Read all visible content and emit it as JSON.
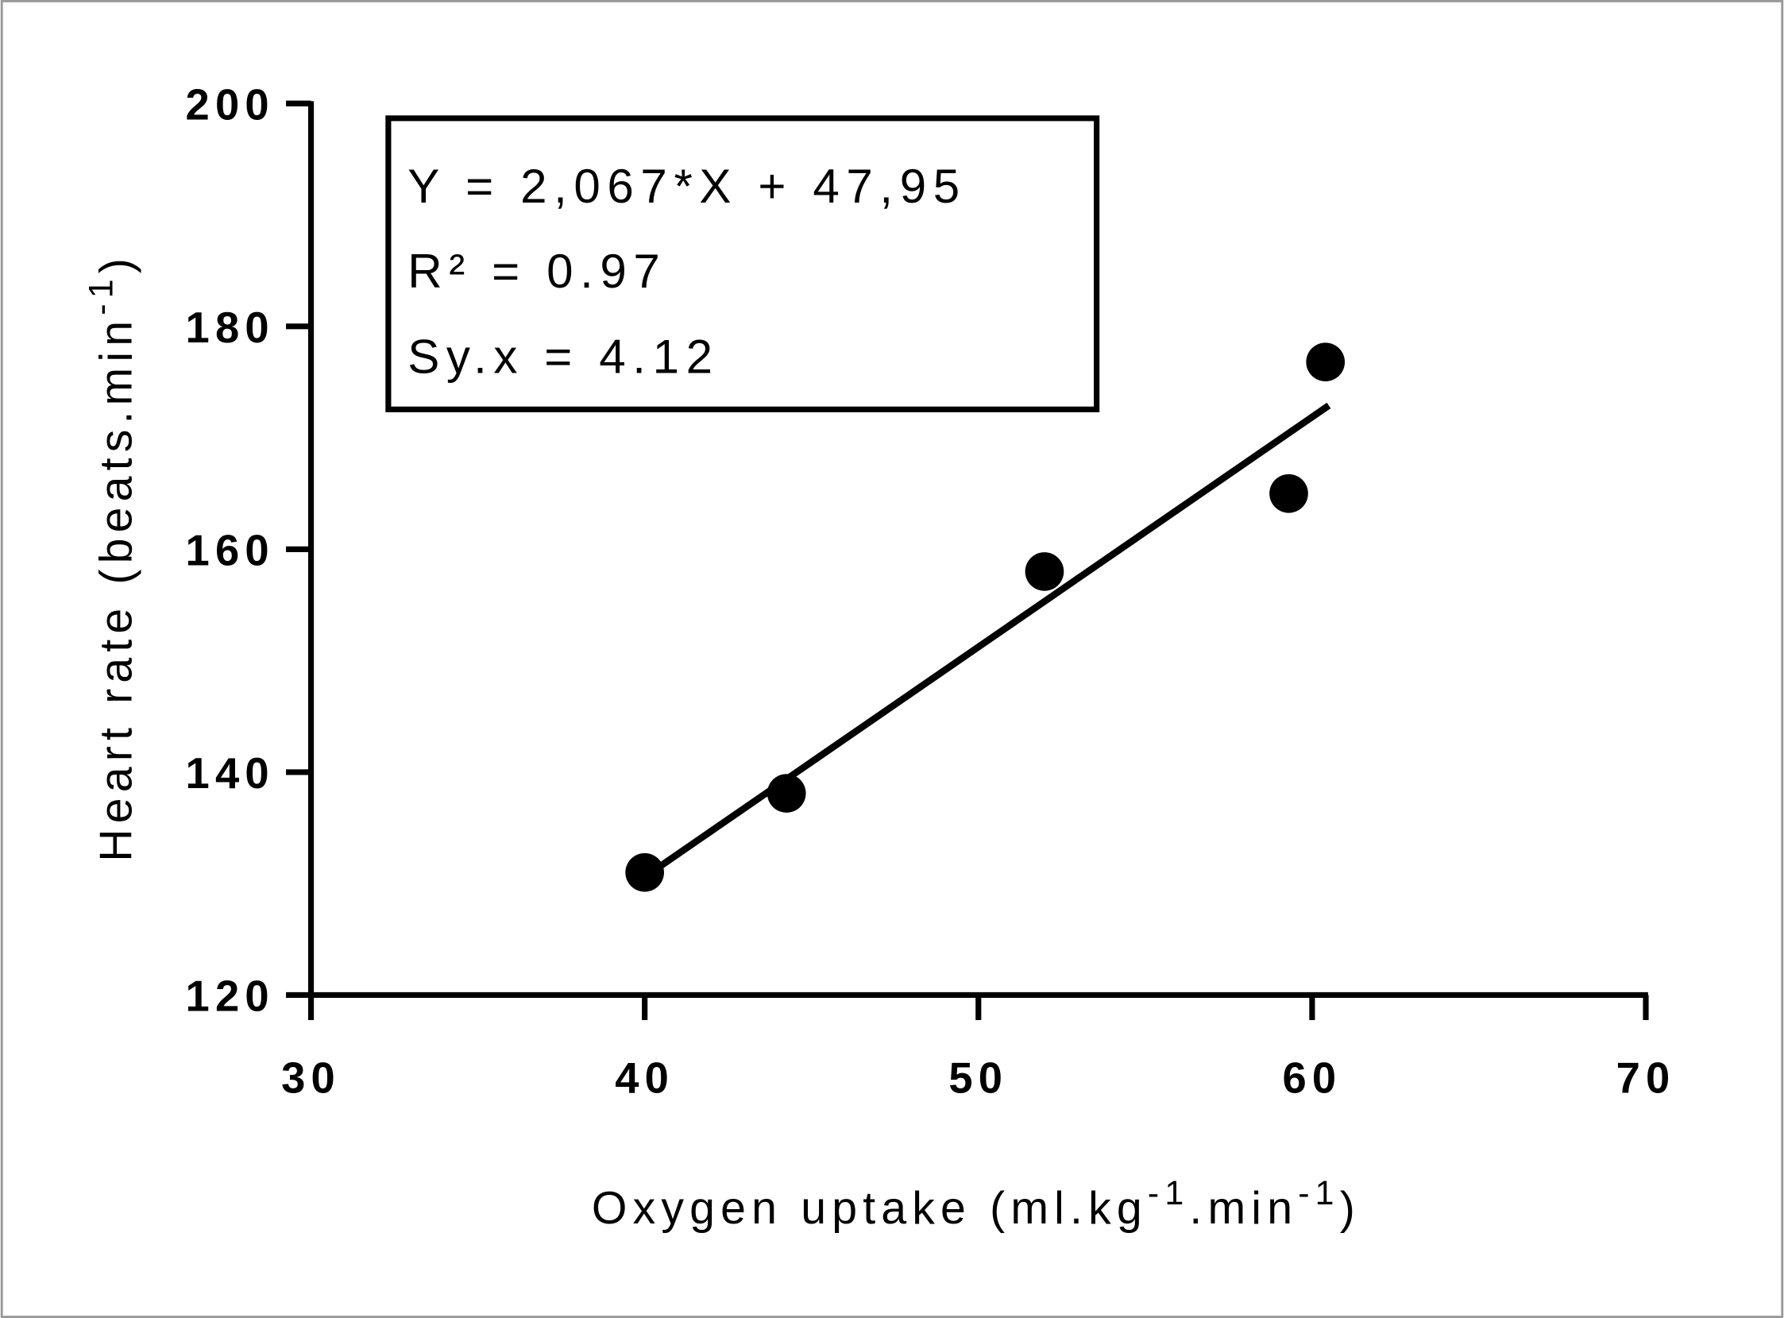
{
  "chart_data": {
    "type": "scatter",
    "xlabel_parts": [
      "Oxygen uptake (ml.kg",
      "-1",
      ".min",
      "-1",
      ")"
    ],
    "ylabel_parts": [
      "Heart rate (beats.min",
      "-1",
      ")"
    ],
    "annotation_lines": [
      "Y = 2,067*X + 47,95",
      "R² = 0.97",
      "Sy.x = 4.12"
    ],
    "x": [
      40.0,
      44.25,
      51.98,
      59.3,
      60.4
    ],
    "y": [
      131.0,
      138.1,
      158.0,
      165.0,
      176.8
    ],
    "color": "#000000",
    "fit_line": {
      "x": [
        40,
        60.5
      ],
      "y": [
        130.6,
        172.9
      ]
    },
    "xlim": [
      30,
      70
    ],
    "ylim": [
      120,
      200
    ],
    "xticks": [
      30,
      40,
      50,
      60,
      70
    ],
    "yticks": [
      120,
      140,
      160,
      180,
      200
    ]
  }
}
